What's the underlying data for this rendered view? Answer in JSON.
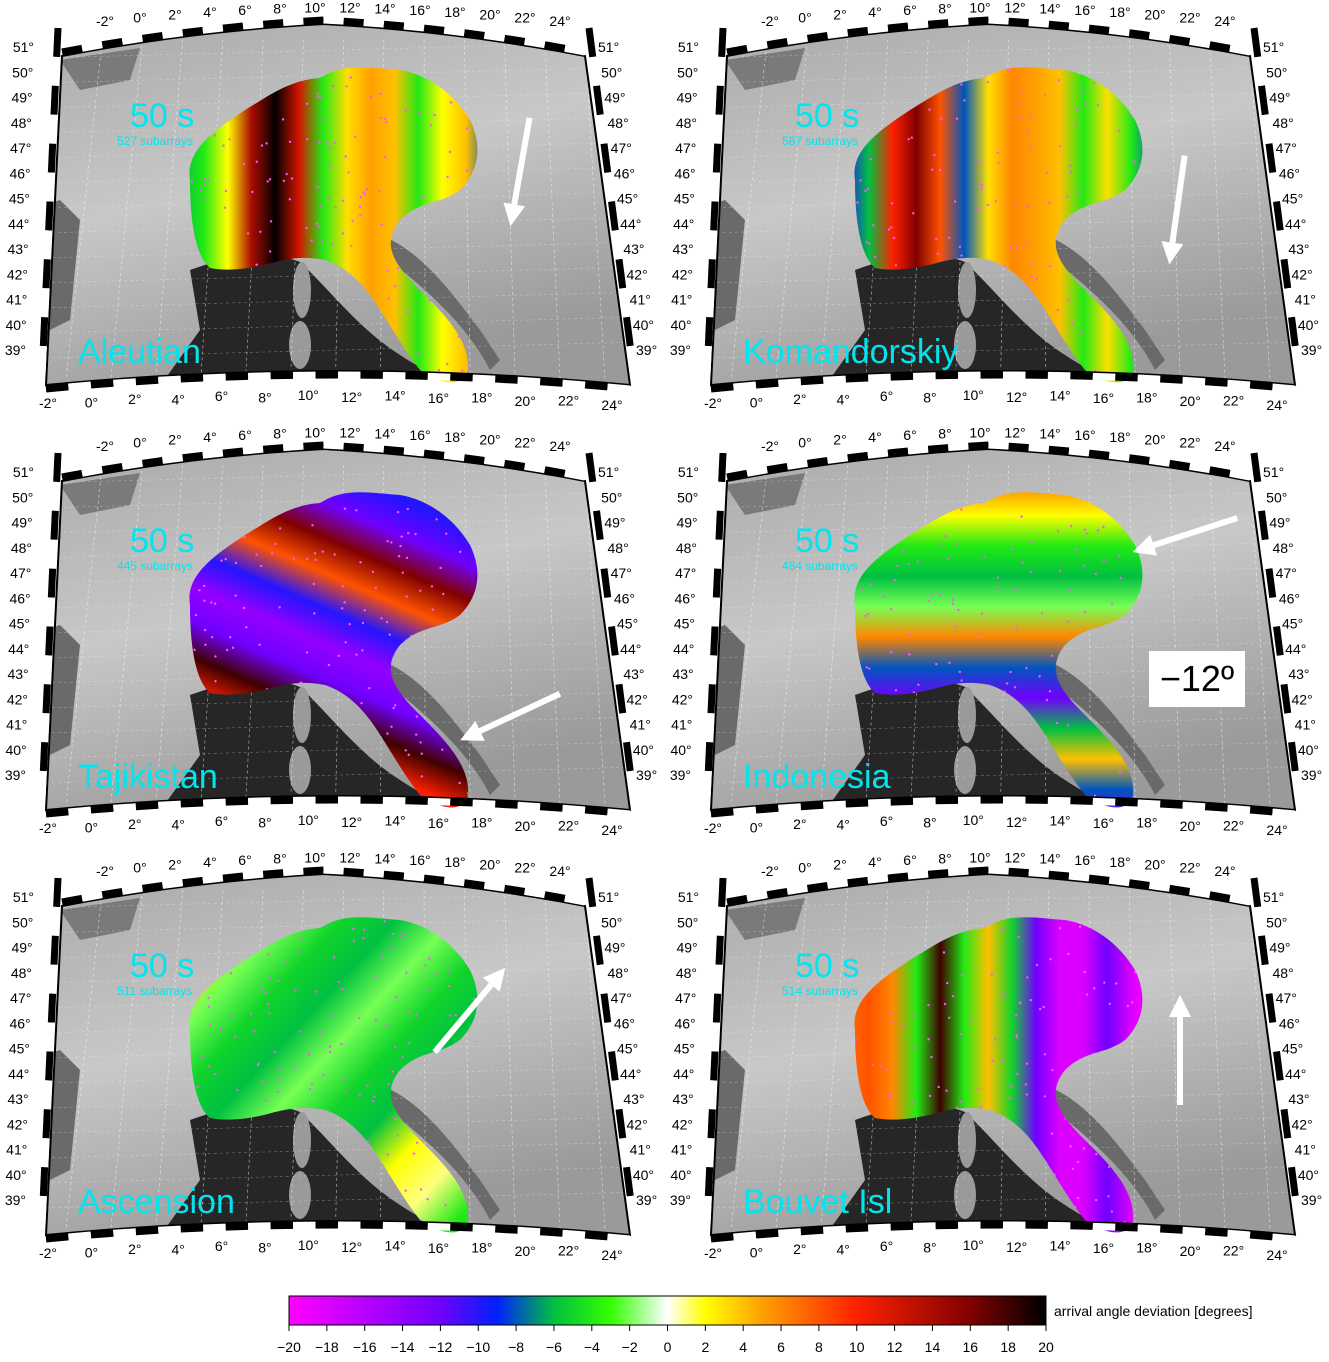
{
  "panels": [
    {
      "event": "Aleutian",
      "period": "50 s",
      "subarrays": "527 subarrays",
      "arrow_bearing_deg": 190,
      "banding": "vertical",
      "bands": [
        -6,
        -4,
        2,
        14,
        20,
        12,
        -4,
        3,
        5,
        4,
        -4,
        2,
        4,
        -8
      ],
      "arrow_label": ""
    },
    {
      "event": "Komandorskiy",
      "period": "50 s",
      "subarrays": "587 subarrays",
      "arrow_bearing_deg": 188,
      "banding": "vertical",
      "bands": [
        -10,
        -6,
        10,
        16,
        8,
        -8,
        3,
        6,
        5,
        4,
        -4,
        3,
        -4,
        -8
      ],
      "arrow_label": ""
    },
    {
      "event": "Tajikistan",
      "period": "50 s",
      "subarrays": "445 subarrays",
      "arrow_bearing_deg": 245,
      "banding": "diagonal",
      "bands": [
        -12,
        -10,
        -12,
        10,
        18,
        -12,
        -14,
        -10,
        8,
        16,
        -12,
        -10
      ],
      "arrow_label": ""
    },
    {
      "event": "Indonesia",
      "period": "50 s",
      "subarrays": "484 subarrays",
      "arrow_bearing_deg": 252,
      "banding": "horizontal",
      "bands": [
        6,
        2,
        -4,
        -6,
        -2,
        6,
        -8,
        -12,
        -6,
        4,
        -8,
        -12
      ],
      "arrow_label": "−12º"
    },
    {
      "event": "Ascension",
      "period": "50 s",
      "subarrays": "511 subarrays",
      "arrow_bearing_deg": 40,
      "banding": "diagonal2",
      "bands": [
        6,
        3,
        -2,
        -5,
        -6,
        -2,
        -5,
        -6,
        2,
        1,
        -4,
        -5
      ],
      "arrow_label": ""
    },
    {
      "event": "Bouvet Isl",
      "period": "50 s",
      "subarrays": "514 subarrays",
      "arrow_bearing_deg": 0,
      "banding": "vertical",
      "bands": [
        7,
        8,
        6,
        -4,
        18,
        -4,
        4,
        -5,
        -12,
        -18,
        -18,
        -12,
        -18,
        -20
      ],
      "arrow_label": ""
    }
  ],
  "map_ticks": {
    "top": [
      "-2°",
      "0°",
      "2°",
      "4°",
      "6°",
      "8°",
      "10°",
      "12°",
      "14°",
      "16°",
      "18°",
      "20°",
      "22°",
      "24°"
    ],
    "bottom": [
      "-2°",
      "0°",
      "2°",
      "4°",
      "6°",
      "8°",
      "10°",
      "12°",
      "14°",
      "16°",
      "18°",
      "20°",
      "22°",
      "24°"
    ],
    "lat": [
      "51°",
      "50°",
      "49°",
      "48°",
      "47°",
      "46°",
      "45°",
      "44°",
      "43°",
      "42°",
      "41°",
      "40°",
      "39°"
    ]
  },
  "colorbar": {
    "label": "arrival angle deviation [degrees]",
    "ticks": [
      "−20",
      "−18",
      "−16",
      "−14",
      "−12",
      "−10",
      "−8",
      "−6",
      "−4",
      "−2",
      "0",
      "2",
      "4",
      "6",
      "8",
      "10",
      "12",
      "14",
      "16",
      "18",
      "20"
    ],
    "range": [
      -20,
      20
    ],
    "stops": [
      {
        "v": -20,
        "c": "#ff00ff"
      },
      {
        "v": -12,
        "c": "#7000ff"
      },
      {
        "v": -9,
        "c": "#0020ff"
      },
      {
        "v": -6,
        "c": "#00c040"
      },
      {
        "v": -3,
        "c": "#33ff00"
      },
      {
        "v": 0,
        "c": "#ffffff"
      },
      {
        "v": 2,
        "c": "#ffff00"
      },
      {
        "v": 5,
        "c": "#ffa000"
      },
      {
        "v": 10,
        "c": "#ff2000"
      },
      {
        "v": 16,
        "c": "#800000"
      },
      {
        "v": 20,
        "c": "#000000"
      }
    ]
  },
  "colors": {
    "map_land": "#b8b8b8",
    "map_sea": "#2a2a2a",
    "title": "#00e5ee",
    "arrow": "#ffffff",
    "station": "#ff55ff"
  }
}
